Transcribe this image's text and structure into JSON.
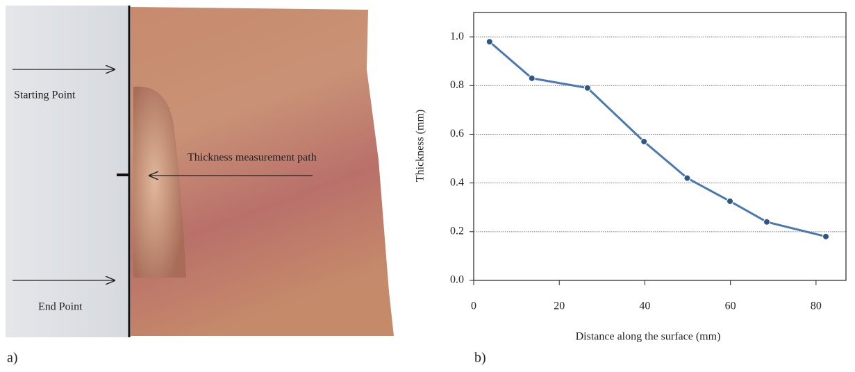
{
  "panel_a": {
    "starting_label": "Starting Point",
    "path_label": "Thickness measurement path",
    "end_label": "End Point",
    "caption": "a)"
  },
  "panel_b": {
    "caption": "b)"
  },
  "chart_data": {
    "type": "line",
    "x_label": "Distance along the surface (mm)",
    "y_label": "Thickness (mm)",
    "x": [
      3.7,
      13.6,
      26.6,
      39.8,
      49.9,
      59.9,
      68.5,
      82.3
    ],
    "values": [
      0.98,
      0.83,
      0.79,
      0.57,
      0.42,
      0.325,
      0.24,
      0.18
    ],
    "color": "#4a78b0",
    "marker_color": "#2f5685",
    "xlim": [
      0,
      87
    ],
    "xticks": [
      0,
      20,
      40,
      60,
      80
    ],
    "ylim": [
      0,
      1.1
    ],
    "yticks": [
      {
        "value": 0,
        "label": "0.0"
      },
      0.2,
      0.4,
      0.6,
      0.8,
      {
        "value": 1,
        "label": "1.0"
      }
    ],
    "grid": true
  }
}
